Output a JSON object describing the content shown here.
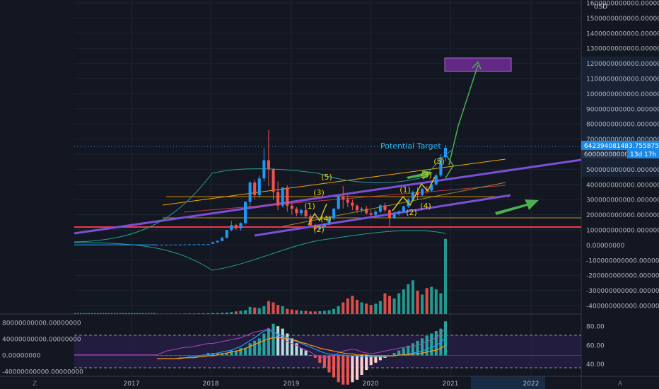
{
  "chart_data": {
    "type": "candlestick",
    "title": "",
    "currency": "USD",
    "price_axis": {
      "ticks": [
        "1600000000000.00000000",
        "1500000000000.00000000",
        "1400000000000.00000000",
        "1300000000000.00000000",
        "1200000000000.00000000",
        "1100000000000.00000000",
        "1000000000000.00000000",
        "900000000000.00000000",
        "800000000000.00000000",
        "700000000000.00000000",
        "600000000000.00000000",
        "500000000000.00000000",
        "400000000000.00000000",
        "300000000000.00000000",
        "200000000000.00000000",
        "100000000000.00000000",
        "0.00000000",
        "-100000000000.00000000",
        "-200000000000.00000000",
        "-300000000000.00000000",
        "-400000000000.00000000"
      ],
      "range": [
        -450000000000,
        1620000000000
      ],
      "last_price_label": "642394081483.75587584",
      "last_price": 642394081483,
      "countdown_label": "13d 17h",
      "current_label": "600000000000.0"
    },
    "time_axis": {
      "labels": [
        "2017",
        "2018",
        "2019",
        "2020",
        "2021",
        "2022"
      ],
      "corner_left": "Z",
      "corner_right": "A"
    },
    "annotations": {
      "potential_target": "Potential Target",
      "waves_first": [
        "(1)",
        "(2)",
        "(3)",
        "(4)",
        "(5)"
      ],
      "waves_second": [
        "(1)",
        "(2)",
        "(3)",
        "(4)",
        "(5)"
      ]
    },
    "candles": [
      {
        "o": 1,
        "h": 1.5,
        "l": 0.8,
        "c": 1.3
      },
      {
        "o": 1.3,
        "h": 1.8,
        "l": 1.1,
        "c": 1.6
      },
      {
        "o": 1.6,
        "h": 2.2,
        "l": 1.4,
        "c": 2
      },
      {
        "o": 2,
        "h": 2.6,
        "l": 1.8,
        "c": 2.4
      },
      {
        "o": 2.4,
        "h": 3,
        "l": 2.2,
        "c": 2.8
      },
      {
        "o": 2.8,
        "h": 3.5,
        "l": 2.6,
        "c": 3.2
      },
      {
        "o": 3.2,
        "h": 4,
        "l": 3,
        "c": 3.7
      },
      {
        "o": 3.7,
        "h": 4.3,
        "l": 3.3,
        "c": 4
      },
      {
        "o": 4,
        "h": 4.6,
        "l": 3.6,
        "c": 4.3
      },
      {
        "o": 4.3,
        "h": 5,
        "l": 4,
        "c": 4.8
      },
      {
        "o": 4.8,
        "h": 5.5,
        "l": 4.5,
        "c": 5.2
      },
      {
        "o": 5.2,
        "h": 5.8,
        "l": 4.9,
        "c": 5.5
      },
      {
        "o": 8,
        "h": 22,
        "l": 7,
        "c": 18
      },
      {
        "o": 18,
        "h": 30,
        "l": 15,
        "c": 27
      },
      {
        "o": 27,
        "h": 55,
        "l": 24,
        "c": 47
      },
      {
        "o": 47,
        "h": 100,
        "l": 45,
        "c": 99
      },
      {
        "o": 99,
        "h": 160,
        "l": 90,
        "c": 132
      },
      {
        "o": 132,
        "h": 140,
        "l": 100,
        "c": 110
      },
      {
        "o": 110,
        "h": 150,
        "l": 95,
        "c": 145
      },
      {
        "o": 145,
        "h": 290,
        "l": 135,
        "c": 285
      },
      {
        "o": 285,
        "h": 420,
        "l": 250,
        "c": 413
      },
      {
        "o": 413,
        "h": 430,
        "l": 300,
        "c": 330
      },
      {
        "o": 330,
        "h": 460,
        "l": 310,
        "c": 440
      },
      {
        "o": 440,
        "h": 640,
        "l": 420,
        "c": 560
      },
      {
        "o": 560,
        "h": 760,
        "l": 390,
        "c": 500
      },
      {
        "o": 500,
        "h": 510,
        "l": 300,
        "c": 350
      },
      {
        "o": 350,
        "h": 420,
        "l": 230,
        "c": 260
      },
      {
        "o": 260,
        "h": 380,
        "l": 250,
        "c": 380
      },
      {
        "o": 380,
        "h": 395,
        "l": 220,
        "c": 260
      },
      {
        "o": 260,
        "h": 280,
        "l": 200,
        "c": 240
      },
      {
        "o": 240,
        "h": 250,
        "l": 190,
        "c": 210
      },
      {
        "o": 210,
        "h": 240,
        "l": 195,
        "c": 230
      },
      {
        "o": 230,
        "h": 235,
        "l": 180,
        "c": 190
      },
      {
        "o": 190,
        "h": 200,
        "l": 120,
        "c": 130
      },
      {
        "o": 130,
        "h": 140,
        "l": 100,
        "c": 105
      },
      {
        "o": 105,
        "h": 130,
        "l": 100,
        "c": 120
      },
      {
        "o": 120,
        "h": 145,
        "l": 115,
        "c": 140
      },
      {
        "o": 140,
        "h": 185,
        "l": 130,
        "c": 175
      },
      {
        "o": 175,
        "h": 245,
        "l": 165,
        "c": 240
      },
      {
        "o": 240,
        "h": 330,
        "l": 230,
        "c": 320
      },
      {
        "o": 320,
        "h": 390,
        "l": 240,
        "c": 300
      },
      {
        "o": 300,
        "h": 330,
        "l": 250,
        "c": 280
      },
      {
        "o": 280,
        "h": 300,
        "l": 230,
        "c": 260
      },
      {
        "o": 260,
        "h": 270,
        "l": 210,
        "c": 230
      },
      {
        "o": 230,
        "h": 250,
        "l": 215,
        "c": 240
      },
      {
        "o": 240,
        "h": 260,
        "l": 200,
        "c": 210
      },
      {
        "o": 210,
        "h": 230,
        "l": 190,
        "c": 200
      },
      {
        "o": 200,
        "h": 230,
        "l": 190,
        "c": 220
      },
      {
        "o": 220,
        "h": 270,
        "l": 210,
        "c": 262
      },
      {
        "o": 262,
        "h": 280,
        "l": 215,
        "c": 230
      },
      {
        "o": 230,
        "h": 235,
        "l": 120,
        "c": 180
      },
      {
        "o": 180,
        "h": 220,
        "l": 170,
        "c": 205
      },
      {
        "o": 205,
        "h": 230,
        "l": 195,
        "c": 222
      },
      {
        "o": 222,
        "h": 260,
        "l": 215,
        "c": 255
      },
      {
        "o": 255,
        "h": 310,
        "l": 245,
        "c": 300
      },
      {
        "o": 300,
        "h": 360,
        "l": 290,
        "c": 350
      },
      {
        "o": 350,
        "h": 380,
        "l": 300,
        "c": 330
      },
      {
        "o": 330,
        "h": 380,
        "l": 320,
        "c": 370
      },
      {
        "o": 370,
        "h": 390,
        "l": 340,
        "c": 360
      },
      {
        "o": 360,
        "h": 410,
        "l": 350,
        "c": 400
      },
      {
        "o": 400,
        "h": 470,
        "l": 390,
        "c": 460
      },
      {
        "o": 460,
        "h": 600,
        "l": 450,
        "c": 580
      },
      {
        "o": 580,
        "h": 660,
        "l": 555,
        "c": 642
      }
    ],
    "volume": [
      2,
      2,
      2,
      3,
      3,
      3,
      4,
      4,
      4,
      5,
      5,
      6,
      8,
      8,
      10,
      12,
      15,
      20,
      25,
      30,
      55,
      50,
      45,
      60,
      100,
      90,
      70,
      60,
      40,
      35,
      30,
      25,
      25,
      20,
      20,
      22,
      25,
      30,
      40,
      60,
      90,
      120,
      140,
      110,
      90,
      80,
      70,
      80,
      100,
      160,
      140,
      120,
      160,
      190,
      230,
      260,
      180,
      150,
      200,
      210,
      190,
      160,
      580
    ],
    "volume_max": 600,
    "oscillator": {
      "ticks_left": [
        "80000000000.00000000",
        "40000000000.00000000",
        "0.00000000",
        "-40000000000.00000000"
      ],
      "ticks_right": [
        "80.00",
        "60.00",
        "40.00"
      ],
      "left_range": [
        -48000000000,
        95000000000
      ],
      "right_range": [
        29,
        90
      ],
      "levels": [
        70,
        30
      ],
      "histogram": [
        0,
        0,
        0,
        0,
        0,
        0,
        0,
        0,
        0,
        0,
        0,
        1,
        1,
        1,
        1,
        1,
        2,
        2,
        3,
        3,
        5,
        6,
        7,
        9,
        11,
        13,
        12,
        11,
        9,
        7,
        5,
        3,
        2,
        0,
        -1,
        -3,
        -5,
        -7,
        -9,
        -11,
        -12,
        -12,
        -11,
        -10,
        -8,
        -6,
        -4,
        -3,
        -2,
        -1,
        0,
        1,
        2,
        3,
        4,
        5,
        6,
        7,
        8,
        9,
        10,
        11,
        14
      ],
      "histogram_unit": 6000000000,
      "rsi": [
        50,
        52,
        54,
        55,
        56,
        57,
        58,
        58,
        59,
        60,
        61,
        62,
        62,
        63,
        64,
        65,
        66,
        67,
        68,
        70,
        72,
        74,
        75,
        76,
        78,
        75,
        70,
        67,
        64,
        62,
        60,
        57,
        55,
        53,
        50,
        48,
        47,
        48,
        50,
        52,
        54,
        55,
        56,
        55,
        53,
        52,
        51,
        52,
        53,
        54,
        55,
        56,
        57,
        58,
        58,
        59,
        60,
        62,
        64,
        66,
        68,
        72,
        78
      ],
      "macd": [
        46,
        46,
        46,
        46,
        46,
        47,
        47,
        48,
        48,
        49,
        50,
        50,
        51,
        52,
        53,
        54,
        55,
        57,
        59,
        62,
        65,
        68,
        72,
        75,
        76,
        74,
        72,
        70,
        68,
        66,
        64,
        62,
        60,
        58,
        56,
        54,
        52,
        51,
        50,
        50,
        50,
        49,
        49,
        49,
        48,
        48,
        48,
        48,
        48,
        48,
        49,
        49,
        50,
        50,
        51,
        52,
        53,
        54,
        56,
        58,
        60,
        63,
        68
      ],
      "signal": [
        46,
        46,
        46,
        46,
        46,
        46,
        47,
        47,
        47,
        48,
        48,
        49,
        49,
        50,
        51,
        52,
        53,
        54,
        55,
        57,
        59,
        61,
        63,
        65,
        67,
        68,
        68,
        68,
        67,
        66,
        65,
        63,
        62,
        60,
        59,
        57,
        56,
        55,
        54,
        53,
        52,
        51,
        51,
        50,
        50,
        50,
        49,
        49,
        49,
        49,
        49,
        49,
        50,
        50,
        50,
        51,
        51,
        52,
        53,
        54,
        55,
        57,
        60
      ]
    }
  }
}
